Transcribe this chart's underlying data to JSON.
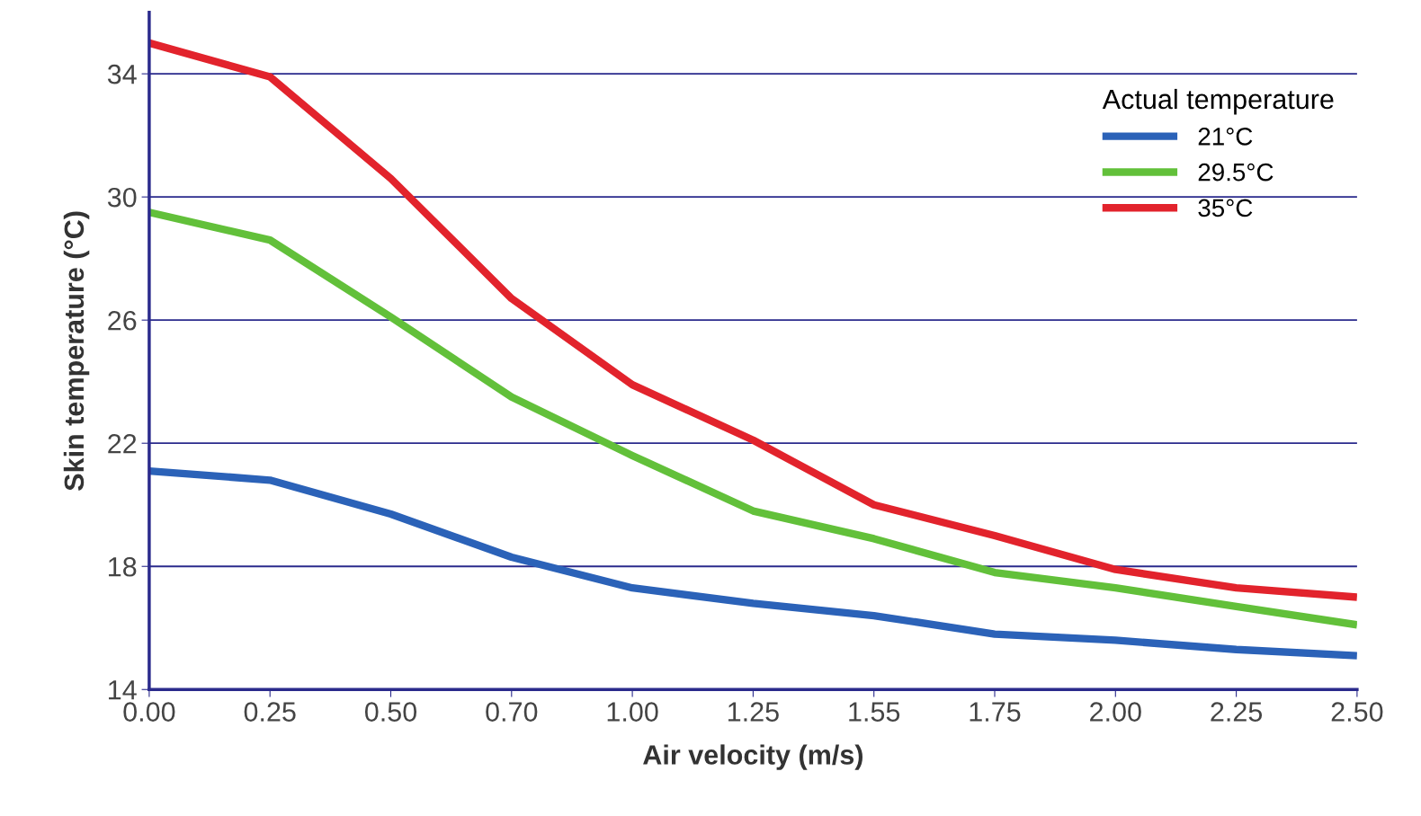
{
  "chart_data": {
    "type": "line",
    "xlabel": "Air velocity (m/s)",
    "ylabel": "Skin temperature (°C)",
    "legend_title": "Actual temperature",
    "categories": [
      "0.00",
      "0.25",
      "0.50",
      "0.70",
      "1.00",
      "1.25",
      "1.55",
      "1.75",
      "2.00",
      "2.25",
      "2.50"
    ],
    "series": [
      {
        "name": "21°C",
        "color": "#2b62b8",
        "values": [
          21.1,
          20.8,
          19.7,
          18.3,
          17.3,
          16.8,
          16.4,
          15.8,
          15.6,
          15.3,
          15.1
        ]
      },
      {
        "name": "29.5°C",
        "color": "#62c03a",
        "values": [
          29.5,
          28.6,
          26.1,
          23.5,
          21.6,
          19.8,
          18.9,
          17.8,
          17.3,
          16.7,
          16.1
        ]
      },
      {
        "name": "35°C",
        "color": "#e2232c",
        "values": [
          35.0,
          33.9,
          30.6,
          26.7,
          23.9,
          22.1,
          20.0,
          19.0,
          17.9,
          17.3,
          17.0
        ]
      }
    ],
    "ylim": [
      14,
      36
    ],
    "yticks": [
      14,
      18,
      22,
      26,
      30,
      34
    ],
    "grid": "y",
    "legend": "top right",
    "marker": "none",
    "line_style": "solid"
  }
}
